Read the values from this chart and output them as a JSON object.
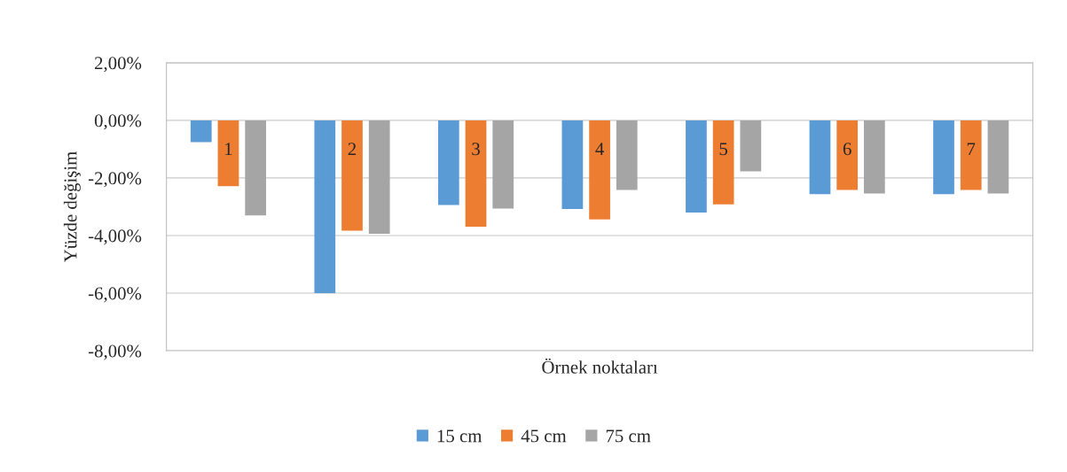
{
  "chart_data": {
    "type": "bar",
    "xlabel": "Örnek noktaları",
    "ylabel": "Yüzde değişim",
    "categories": [
      "1",
      "2",
      "3",
      "4",
      "5",
      "6",
      "7"
    ],
    "series": [
      {
        "name": "15 cm",
        "color": "#5b9bd5",
        "values": [
          -0.76,
          -6.0,
          -2.94,
          -3.08,
          -3.2,
          -2.56,
          -2.56
        ]
      },
      {
        "name": "45 cm",
        "color": "#ed7d31",
        "values": [
          -2.29,
          -3.83,
          -3.69,
          -3.44,
          -2.92,
          -2.42,
          -2.42
        ]
      },
      {
        "name": "75 cm",
        "color": "#a5a5a5",
        "values": [
          -3.3,
          -3.94,
          -3.06,
          -2.42,
          -1.77,
          -2.54,
          -2.54
        ]
      }
    ],
    "ylim": [
      -8,
      2
    ],
    "yticks": [
      {
        "value": -8,
        "label": "-8,00%"
      },
      {
        "value": -6,
        "label": "-6,00%"
      },
      {
        "value": -4,
        "label": "-4,00%"
      },
      {
        "value": -2,
        "label": "-2,00%"
      },
      {
        "value": 0,
        "label": "0,00%"
      },
      {
        "value": 2,
        "label": "2,00%"
      }
    ],
    "grid": "y",
    "legend": "bottom"
  }
}
